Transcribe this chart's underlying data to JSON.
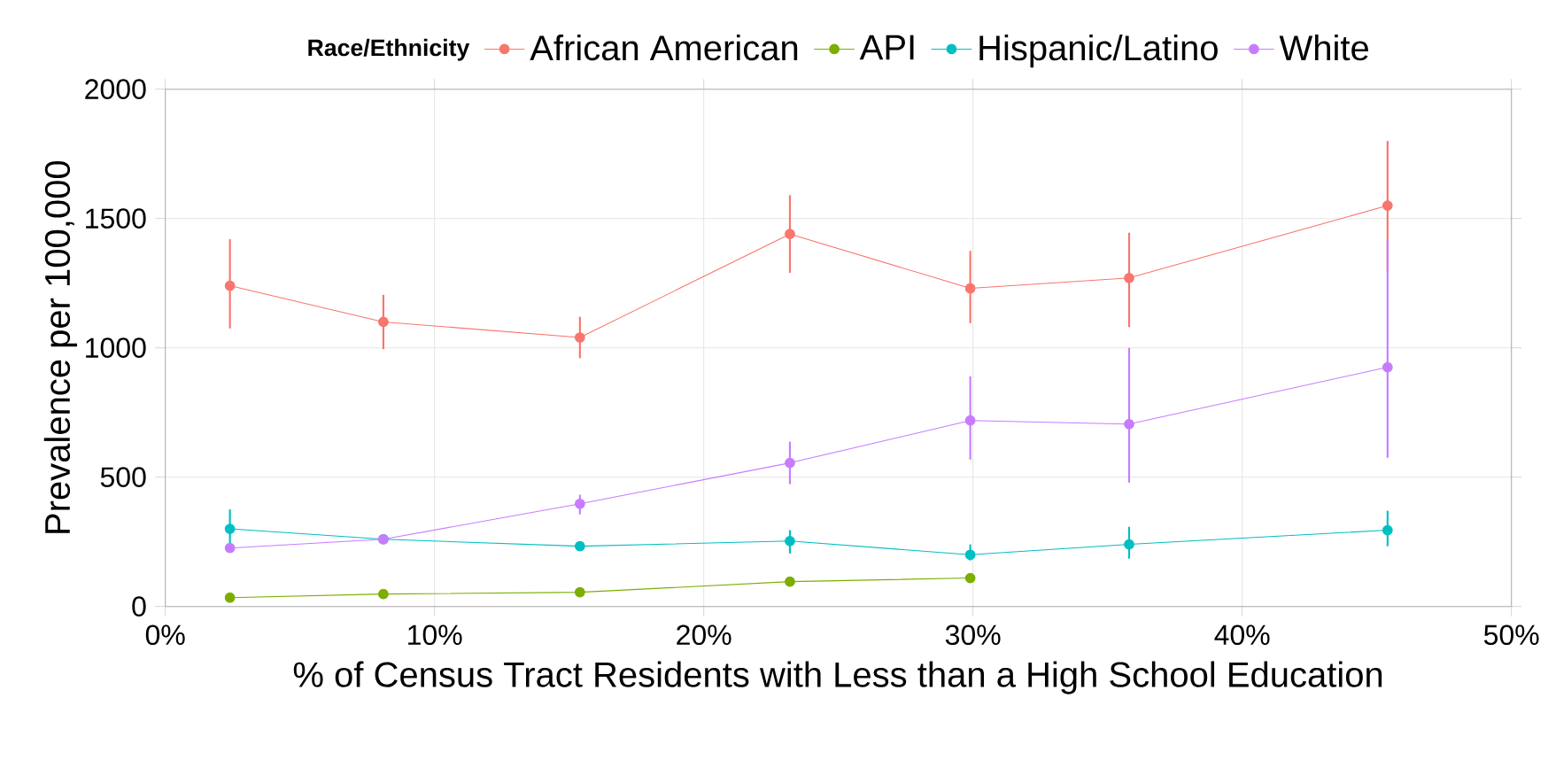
{
  "chart_data": {
    "type": "line",
    "xlabel": "% of Census Tract Residents with Less than a High School Education",
    "ylabel": "Prevalence per 100,000",
    "legend_title": "Race/Ethnicity",
    "x": [
      2.4,
      8.1,
      15.4,
      23.2,
      29.9,
      35.8,
      45.4
    ],
    "series": [
      {
        "name": "African American",
        "color": "#f8766d",
        "values": [
          1240,
          1100,
          1040,
          1440,
          1230,
          1270,
          1550
        ],
        "errors": [
          [
            1075,
            1420
          ],
          [
            995,
            1205
          ],
          [
            960,
            1120
          ],
          [
            1290,
            1590
          ],
          [
            1095,
            1375
          ],
          [
            1080,
            1445
          ],
          [
            1295,
            1800
          ]
        ]
      },
      {
        "name": "API",
        "color": "#7cae00",
        "values": [
          34,
          48,
          55,
          96,
          110,
          null,
          null
        ]
      },
      {
        "name": "Hispanic/Latino",
        "color": "#00bfc4",
        "values": [
          300,
          260,
          233,
          253,
          200,
          240,
          295
        ],
        "errors": [
          [
            240,
            375
          ],
          null,
          null,
          [
            205,
            295
          ],
          [
            178,
            240
          ],
          [
            185,
            308
          ],
          [
            233,
            370
          ]
        ]
      },
      {
        "name": "White",
        "color": "#c77cff",
        "values": [
          226,
          260,
          397,
          555,
          719,
          705,
          925
        ],
        "errors": [
          null,
          null,
          [
            356,
            432
          ],
          [
            473,
            637
          ],
          [
            568,
            890
          ],
          [
            479,
            1000
          ],
          [
            575,
            1420
          ]
        ]
      }
    ],
    "xlim": [
      0,
      50
    ],
    "xticks": [
      {
        "value": 0,
        "label": "0%"
      },
      {
        "value": 10,
        "label": "10%"
      },
      {
        "value": 20,
        "label": "20%"
      },
      {
        "value": 30,
        "label": "30%"
      },
      {
        "value": 40,
        "label": "40%"
      },
      {
        "value": 50,
        "label": "50%"
      }
    ],
    "ylim": [
      0,
      2000
    ],
    "yticks": [
      0,
      500,
      1000,
      1500,
      2000
    ],
    "grid": true,
    "legend": "top",
    "marker": "circle",
    "line_style": "solid"
  }
}
